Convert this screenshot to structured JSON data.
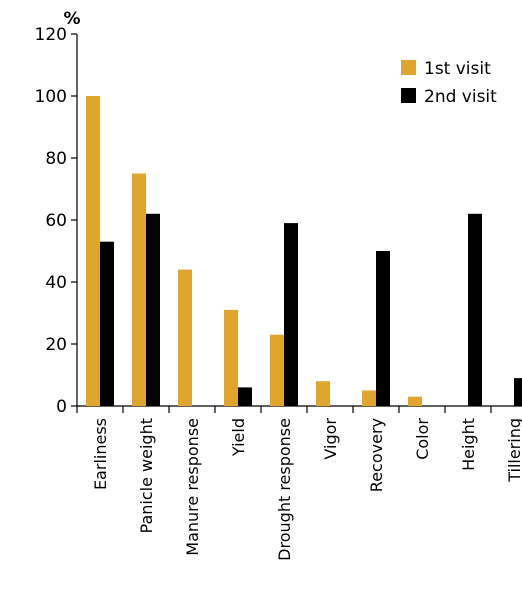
{
  "chart_data": {
    "type": "bar",
    "ylabel": "%",
    "ylim": [
      0,
      120
    ],
    "yticks": [
      0,
      20,
      40,
      60,
      80,
      100,
      120
    ],
    "categories": [
      "Earliness",
      "Panicle weight",
      "Manure response",
      "Yield",
      "Drought response",
      "Vigor",
      "Recovery",
      "Color",
      "Height",
      "Tillering"
    ],
    "series": [
      {
        "name": "1st visit",
        "color": "#E0A52E",
        "values": [
          100,
          75,
          44,
          31,
          23,
          8,
          5,
          3,
          0,
          0
        ]
      },
      {
        "name": "2nd visit",
        "color": "#000000",
        "values": [
          53,
          62,
          0,
          6,
          59,
          0,
          50,
          0,
          62,
          9
        ]
      }
    ],
    "legend_position": "top-right",
    "grid": false
  }
}
